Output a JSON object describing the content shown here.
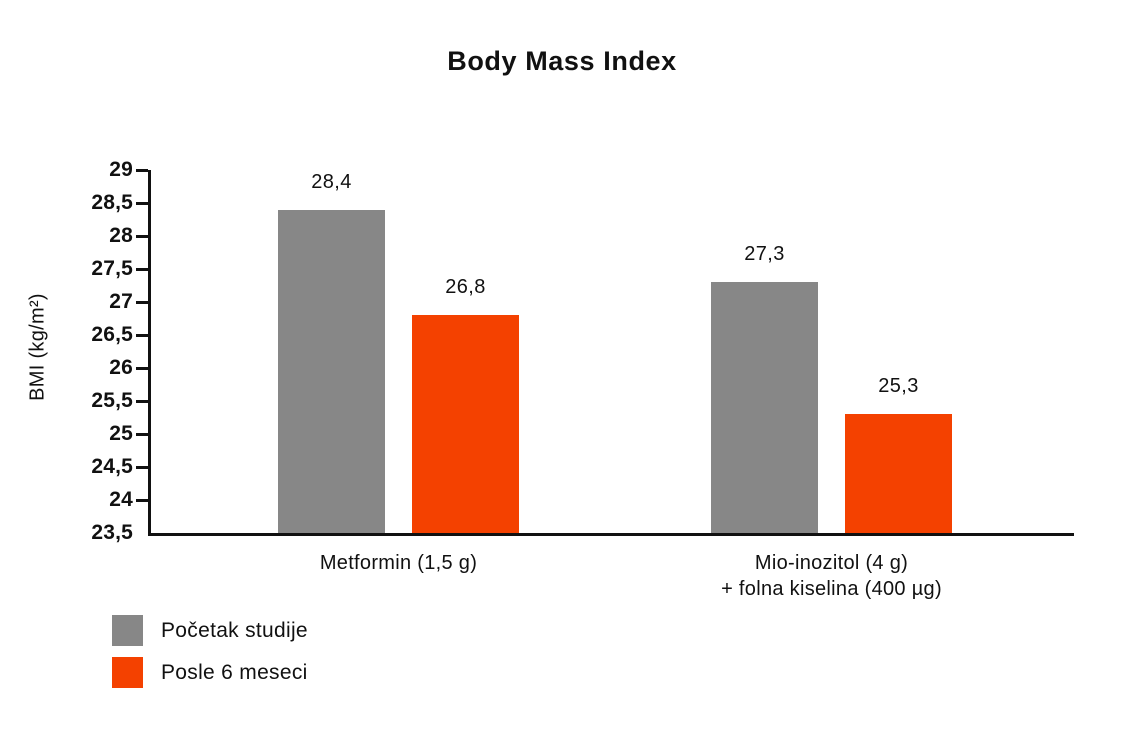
{
  "chart_data": {
    "type": "bar",
    "title": "Body Mass Index",
    "ylabel": "BMI (kg/m²)",
    "xlabel": "",
    "ylim": [
      23.5,
      29
    ],
    "ytick_step": 0.5,
    "yticks": [
      "29",
      "28,5",
      "28",
      "27,5",
      "27",
      "26,5",
      "26",
      "25,5",
      "25",
      "24,5",
      "24",
      "23,5"
    ],
    "categories": [
      "Metformin (1,5 g)",
      "Mio-inozitol (4 g)\n+ folna kiselina (400 µg)"
    ],
    "series": [
      {
        "name": "Početak studije",
        "color": "#878787",
        "values": [
          28.4,
          27.3
        ],
        "labels": [
          "28,4",
          "27,3"
        ]
      },
      {
        "name": "Posle 6 meseci",
        "color": "#F44100",
        "values": [
          26.8,
          25.3
        ],
        "labels": [
          "26,8",
          "25,3"
        ]
      }
    ],
    "grid": false,
    "legend_position": "bottom-left",
    "colors": {
      "background": "#ffffff",
      "axis": "#111111",
      "text": "#111111"
    }
  }
}
